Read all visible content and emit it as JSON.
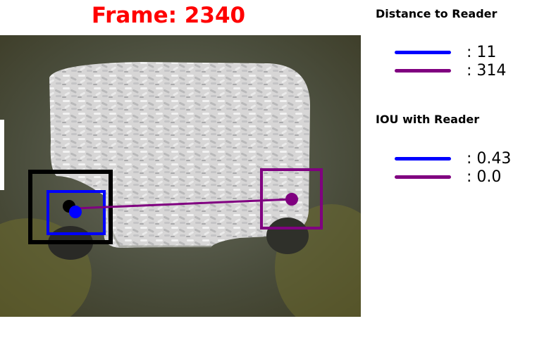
{
  "frame": {
    "label": "Frame: 2340",
    "color": "#ff0000"
  },
  "distance": {
    "title": "Distance to Reader",
    "items": [
      {
        "color": "#0000ff",
        "value": ": 11"
      },
      {
        "color": "#800080",
        "value": ": 314"
      }
    ]
  },
  "iou": {
    "title": "IOU with Reader",
    "items": [
      {
        "color": "#0000ff",
        "value": ": 0.43"
      },
      {
        "color": "#800080",
        "value": ": 0.0"
      }
    ]
  },
  "colors": {
    "reader": "#000000",
    "tracker_a": "#0000ff",
    "tracker_b": "#800080"
  }
}
